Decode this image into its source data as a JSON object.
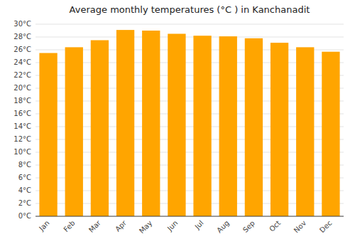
{
  "chart_data": {
    "type": "bar",
    "title": "Average monthly temperatures (°C ) in Kanchanadit",
    "categories": [
      "Jan",
      "Feb",
      "Mar",
      "Apr",
      "May",
      "Jun",
      "Jul",
      "Aug",
      "Sep",
      "Oct",
      "Nov",
      "Dec"
    ],
    "values": [
      25.5,
      26.4,
      27.5,
      29.1,
      29.0,
      28.5,
      28.2,
      28.1,
      27.8,
      27.1,
      26.4,
      25.7
    ],
    "color": "#FFA500",
    "ylim": [
      0,
      30
    ],
    "yticks": [
      {
        "value": 0,
        "label": "0°C"
      },
      {
        "value": 2,
        "label": "2°C"
      },
      {
        "value": 4,
        "label": "4°C"
      },
      {
        "value": 6,
        "label": "6°C"
      },
      {
        "value": 8,
        "label": "8°C"
      },
      {
        "value": 10,
        "label": "10°C"
      },
      {
        "value": 12,
        "label": "12°C"
      },
      {
        "value": 14,
        "label": "14°C"
      },
      {
        "value": 16,
        "label": "16°C"
      },
      {
        "value": 18,
        "label": "18°C"
      },
      {
        "value": 20,
        "label": "20°C"
      },
      {
        "value": 22,
        "label": "22°C"
      },
      {
        "value": 24,
        "label": "24°C"
      },
      {
        "value": 26,
        "label": "26°C"
      },
      {
        "value": 28,
        "label": "28°C"
      },
      {
        "value": 30,
        "label": "30°C"
      }
    ],
    "grid": true
  }
}
